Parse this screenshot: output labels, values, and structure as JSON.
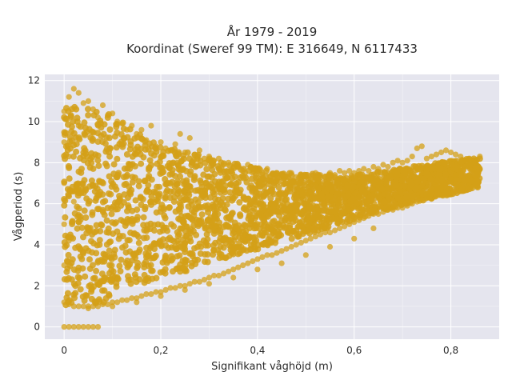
{
  "chart_data": {
    "type": "scatter",
    "title": "År 1979 - 2019",
    "subtitle": "Koordinat (Sweref 99 TM): E 316649, N 6117433",
    "xlabel": "Signifikant våghöjd (m)",
    "ylabel": "Vågperiod (s)",
    "xlim": [
      -0.04,
      0.9
    ],
    "ylim": [
      -0.6,
      12.3
    ],
    "x_ticks": [
      {
        "value": 0,
        "label": "0"
      },
      {
        "value": 0.2,
        "label": "0,2"
      },
      {
        "value": 0.4,
        "label": "0,4"
      },
      {
        "value": 0.6,
        "label": "0,6"
      },
      {
        "value": 0.8,
        "label": "0,8"
      }
    ],
    "y_ticks": [
      {
        "value": 0,
        "label": "0"
      },
      {
        "value": 2,
        "label": "2"
      },
      {
        "value": 4,
        "label": "4"
      },
      {
        "value": 6,
        "label": "6"
      },
      {
        "value": 8,
        "label": "8"
      },
      {
        "value": 10,
        "label": "10"
      },
      {
        "value": 12,
        "label": "12"
      }
    ],
    "grid": true,
    "background_color": "#e5e5ee",
    "marker_color": "#d4a017",
    "series": [
      {
        "points": [
          [
            0.0,
            0
          ],
          [
            0.01,
            0
          ],
          [
            0.02,
            0
          ],
          [
            0.03,
            0
          ],
          [
            0.04,
            0
          ],
          [
            0.05,
            0
          ],
          [
            0.06,
            0
          ],
          [
            0.07,
            0
          ],
          [
            0.0,
            1.2
          ],
          [
            0.0,
            3.0
          ],
          [
            0.0,
            5.0
          ],
          [
            0.0,
            7.0
          ],
          [
            0.0,
            9.0
          ],
          [
            0.0,
            10.5
          ],
          [
            0.01,
            1.1
          ],
          [
            0.01,
            4.2
          ],
          [
            0.01,
            8.3
          ],
          [
            0.01,
            11.2
          ],
          [
            0.02,
            1.0
          ],
          [
            0.02,
            6.1
          ],
          [
            0.02,
            11.6
          ],
          [
            0.03,
            1.0
          ],
          [
            0.03,
            9.8
          ],
          [
            0.03,
            11.4
          ],
          [
            0.04,
            1.0
          ],
          [
            0.04,
            10.9
          ],
          [
            0.05,
            1.0
          ],
          [
            0.05,
            11.0
          ],
          [
            0.06,
            1.0
          ],
          [
            0.06,
            10.6
          ],
          [
            0.07,
            1.0
          ],
          [
            0.07,
            10.2
          ],
          [
            0.08,
            1.1
          ],
          [
            0.08,
            10.8
          ],
          [
            0.09,
            1.1
          ],
          [
            0.09,
            10.3
          ],
          [
            0.1,
            1.2
          ],
          [
            0.1,
            10.4
          ],
          [
            0.11,
            1.2
          ],
          [
            0.11,
            10.0
          ],
          [
            0.12,
            1.3
          ],
          [
            0.12,
            9.9
          ],
          [
            0.13,
            1.3
          ],
          [
            0.13,
            9.6
          ],
          [
            0.14,
            1.4
          ],
          [
            0.14,
            9.8
          ],
          [
            0.15,
            1.4
          ],
          [
            0.15,
            9.4
          ],
          [
            0.16,
            1.5
          ],
          [
            0.16,
            9.6
          ],
          [
            0.17,
            1.6
          ],
          [
            0.17,
            9.1
          ],
          [
            0.18,
            1.6
          ],
          [
            0.18,
            9.8
          ],
          [
            0.19,
            1.7
          ],
          [
            0.19,
            8.8
          ],
          [
            0.2,
            1.7
          ],
          [
            0.2,
            9.0
          ],
          [
            0.21,
            1.8
          ],
          [
            0.21,
            8.7
          ],
          [
            0.22,
            1.9
          ],
          [
            0.22,
            8.6
          ],
          [
            0.23,
            1.9
          ],
          [
            0.23,
            8.9
          ],
          [
            0.24,
            2.0
          ],
          [
            0.24,
            9.4
          ],
          [
            0.25,
            2.0
          ],
          [
            0.25,
            8.5
          ],
          [
            0.26,
            2.1
          ],
          [
            0.26,
            9.2
          ],
          [
            0.27,
            2.2
          ],
          [
            0.27,
            8.4
          ],
          [
            0.28,
            2.2
          ],
          [
            0.28,
            8.6
          ],
          [
            0.29,
            2.3
          ],
          [
            0.29,
            8.2
          ],
          [
            0.3,
            2.4
          ],
          [
            0.3,
            8.3
          ],
          [
            0.31,
            2.5
          ],
          [
            0.31,
            8.1
          ],
          [
            0.32,
            2.5
          ],
          [
            0.32,
            8.2
          ],
          [
            0.33,
            2.6
          ],
          [
            0.33,
            7.9
          ],
          [
            0.34,
            2.7
          ],
          [
            0.34,
            8.0
          ],
          [
            0.35,
            2.8
          ],
          [
            0.35,
            7.8
          ],
          [
            0.36,
            2.9
          ],
          [
            0.36,
            7.9
          ],
          [
            0.37,
            3.0
          ],
          [
            0.37,
            7.6
          ],
          [
            0.38,
            3.1
          ],
          [
            0.38,
            7.9
          ],
          [
            0.39,
            3.2
          ],
          [
            0.39,
            7.5
          ],
          [
            0.4,
            3.3
          ],
          [
            0.4,
            7.6
          ],
          [
            0.41,
            3.4
          ],
          [
            0.41,
            7.5
          ],
          [
            0.42,
            3.5
          ],
          [
            0.42,
            7.7
          ],
          [
            0.43,
            3.5
          ],
          [
            0.43,
            7.4
          ],
          [
            0.44,
            3.6
          ],
          [
            0.44,
            7.5
          ],
          [
            0.45,
            3.7
          ],
          [
            0.45,
            7.4
          ],
          [
            0.46,
            3.8
          ],
          [
            0.46,
            7.3
          ],
          [
            0.47,
            3.9
          ],
          [
            0.47,
            7.5
          ],
          [
            0.48,
            4.0
          ],
          [
            0.48,
            7.3
          ],
          [
            0.49,
            4.1
          ],
          [
            0.49,
            7.4
          ],
          [
            0.5,
            4.2
          ],
          [
            0.5,
            7.4
          ],
          [
            0.51,
            4.3
          ],
          [
            0.51,
            7.2
          ],
          [
            0.52,
            4.4
          ],
          [
            0.52,
            7.5
          ],
          [
            0.53,
            4.5
          ],
          [
            0.53,
            7.4
          ],
          [
            0.54,
            4.6
          ],
          [
            0.54,
            7.3
          ],
          [
            0.55,
            4.6
          ],
          [
            0.55,
            7.5
          ],
          [
            0.56,
            4.7
          ],
          [
            0.56,
            7.4
          ],
          [
            0.57,
            4.8
          ],
          [
            0.57,
            7.6
          ],
          [
            0.58,
            4.9
          ],
          [
            0.58,
            7.5
          ],
          [
            0.59,
            5.0
          ],
          [
            0.59,
            7.6
          ],
          [
            0.6,
            5.1
          ],
          [
            0.6,
            7.5
          ],
          [
            0.61,
            5.2
          ],
          [
            0.61,
            7.6
          ],
          [
            0.62,
            5.3
          ],
          [
            0.62,
            7.7
          ],
          [
            0.63,
            5.4
          ],
          [
            0.63,
            7.6
          ],
          [
            0.64,
            5.5
          ],
          [
            0.64,
            7.8
          ],
          [
            0.65,
            5.5
          ],
          [
            0.65,
            7.7
          ],
          [
            0.66,
            5.6
          ],
          [
            0.66,
            7.9
          ],
          [
            0.67,
            5.7
          ],
          [
            0.67,
            7.8
          ],
          [
            0.68,
            5.7
          ],
          [
            0.68,
            8.0
          ],
          [
            0.69,
            5.8
          ],
          [
            0.69,
            8.1
          ],
          [
            0.7,
            5.8
          ],
          [
            0.7,
            8.0
          ],
          [
            0.71,
            5.9
          ],
          [
            0.71,
            8.1
          ],
          [
            0.72,
            6.0
          ],
          [
            0.72,
            8.3
          ],
          [
            0.73,
            6.1
          ],
          [
            0.73,
            8.7
          ],
          [
            0.74,
            6.2
          ],
          [
            0.74,
            8.8
          ],
          [
            0.75,
            6.3
          ],
          [
            0.75,
            8.2
          ],
          [
            0.76,
            6.5
          ],
          [
            0.76,
            8.3
          ],
          [
            0.77,
            6.7
          ],
          [
            0.77,
            8.4
          ],
          [
            0.78,
            6.8
          ],
          [
            0.78,
            8.5
          ],
          [
            0.79,
            7.0
          ],
          [
            0.79,
            8.6
          ],
          [
            0.8,
            7.2
          ],
          [
            0.8,
            8.5
          ],
          [
            0.81,
            7.4
          ],
          [
            0.81,
            8.4
          ],
          [
            0.82,
            7.6
          ],
          [
            0.82,
            8.3
          ],
          [
            0.83,
            7.8
          ],
          [
            0.83,
            8.1
          ],
          [
            0.84,
            7.9
          ],
          [
            0.85,
            8.0
          ],
          [
            0.86,
            8.3
          ],
          [
            0.64,
            4.8
          ],
          [
            0.6,
            4.3
          ],
          [
            0.55,
            3.9
          ],
          [
            0.5,
            3.5
          ],
          [
            0.45,
            3.1
          ],
          [
            0.4,
            2.8
          ],
          [
            0.35,
            2.4
          ],
          [
            0.3,
            2.1
          ],
          [
            0.25,
            1.8
          ],
          [
            0.2,
            1.5
          ],
          [
            0.15,
            1.2
          ],
          [
            0.1,
            1.0
          ],
          [
            0.05,
            0.9
          ]
        ]
      }
    ]
  }
}
